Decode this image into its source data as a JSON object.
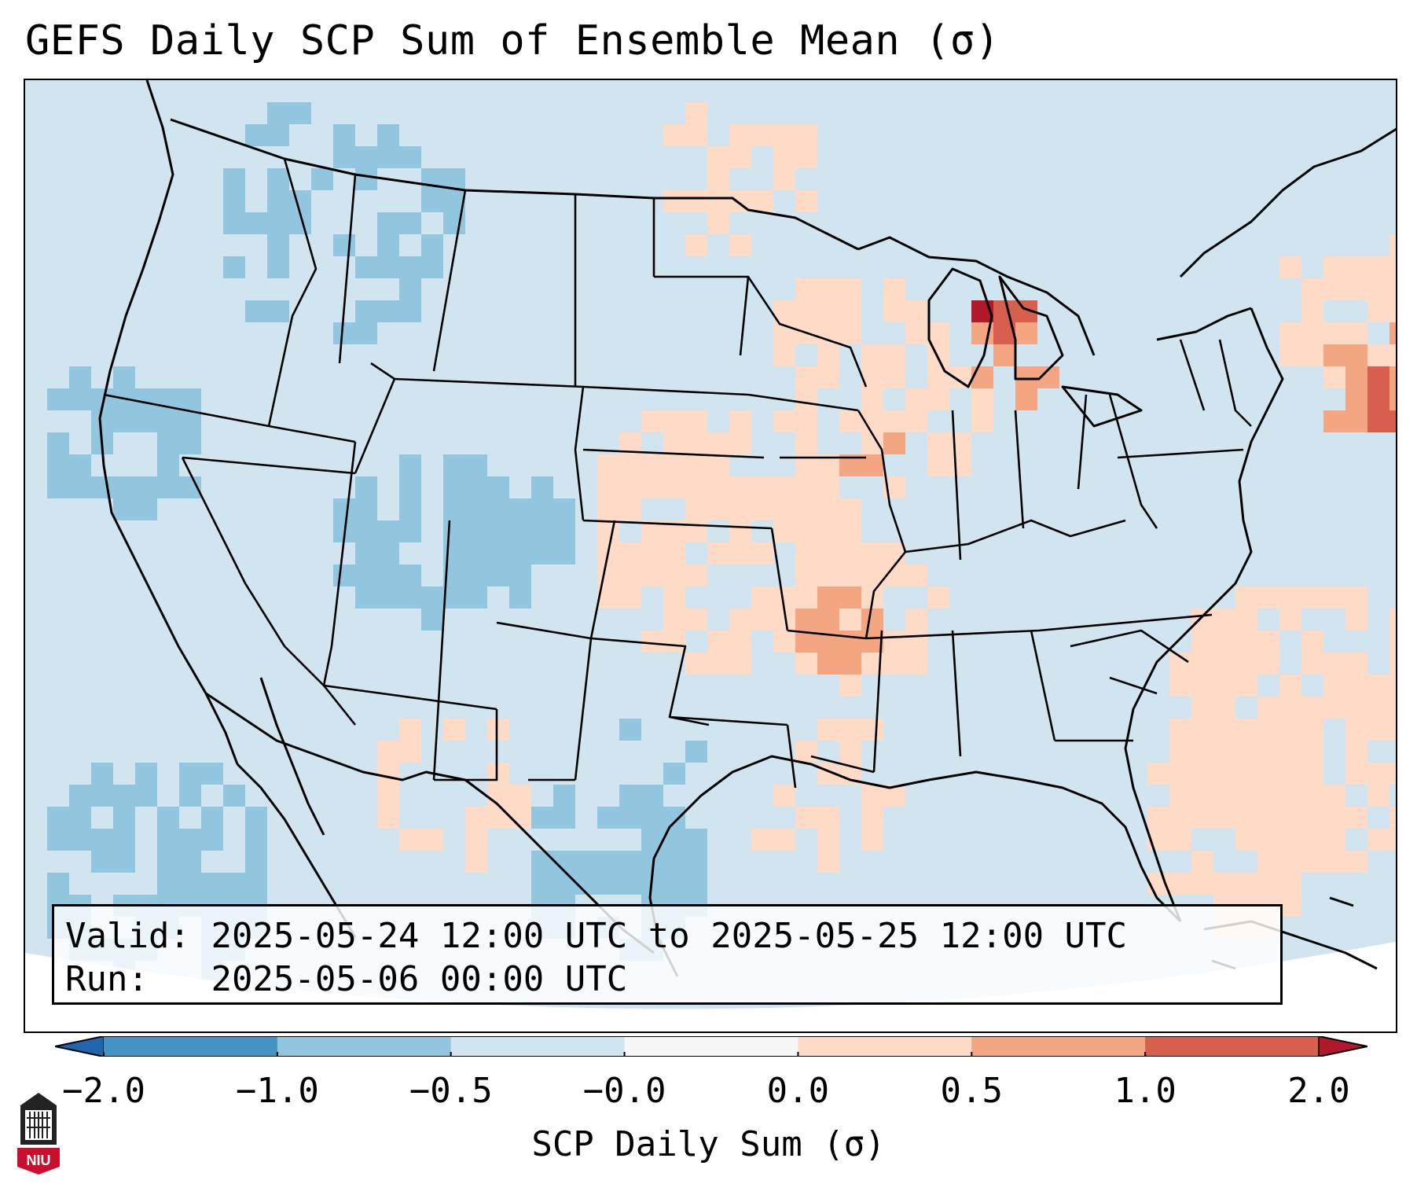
{
  "title": "GEFS Daily SCP Sum of Ensemble Mean (σ)",
  "valid_line_label": "Valid:",
  "valid_line_value": "2025-05-24 12:00 UTC to 2025-05-25 12:00 UTC",
  "run_line_label": "Run:",
  "run_line_value": "2025-05-06 00:00 UTC",
  "colorbar": {
    "label": "SCP Daily Sum (σ)",
    "ticks": [
      "−2.0",
      "−1.0",
      "−0.5",
      "−0.0",
      "0.0",
      "0.5",
      "1.0",
      "2.0"
    ],
    "colors": [
      "#4393c3",
      "#92c5de",
      "#d1e5f0",
      "#f7f7f7",
      "#fddbc7",
      "#f4a582",
      "#d6604d"
    ],
    "extend_low": "#2166ac",
    "extend_high": "#b2182b"
  },
  "logo": {
    "icon": "university-tower-icon",
    "text": "NIU"
  }
}
